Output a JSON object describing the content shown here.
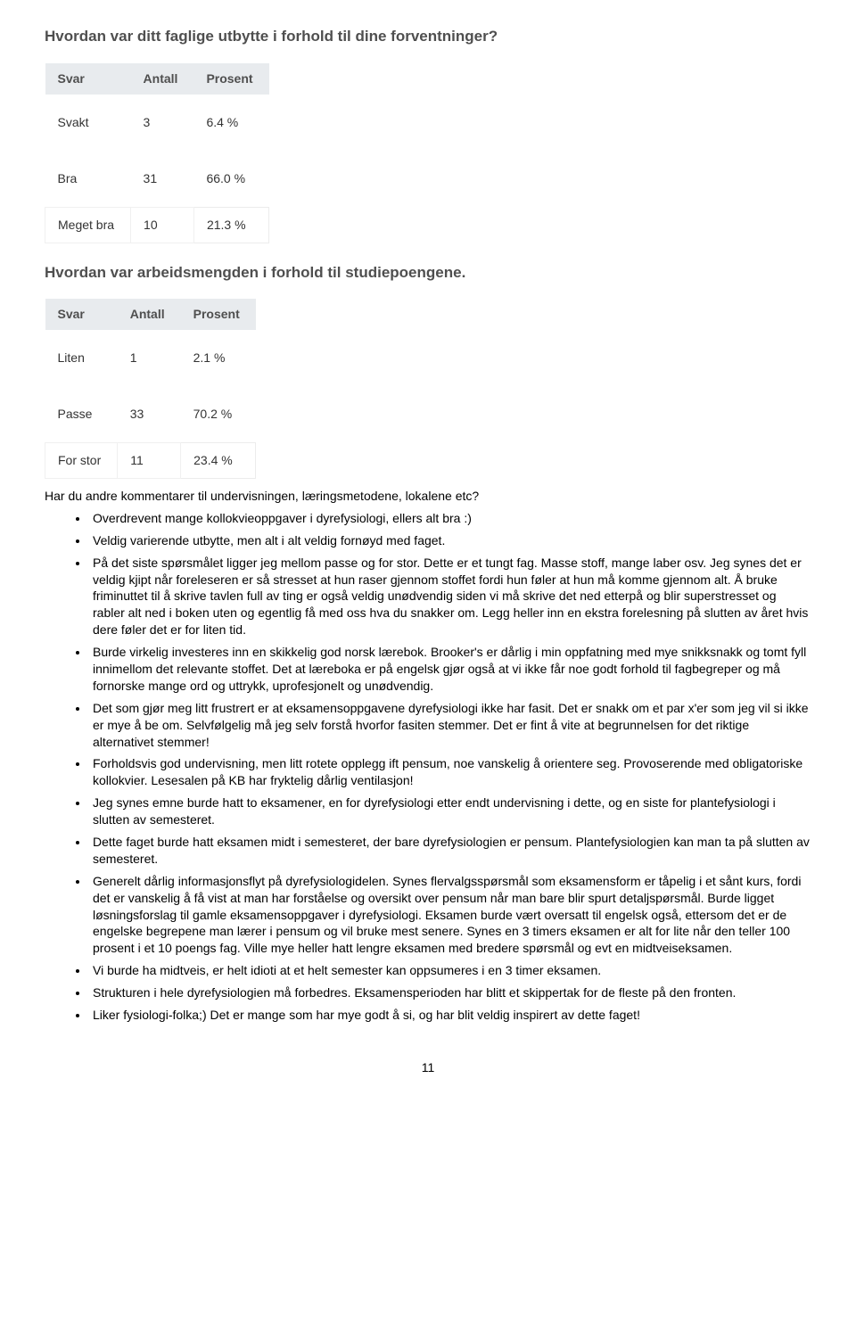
{
  "q1": {
    "title": "Hvordan var ditt faglige utbytte i forhold til dine forventninger?",
    "headers": [
      "Svar",
      "Antall",
      "Prosent"
    ],
    "rows": [
      {
        "label": "Svakt",
        "count": "3",
        "pct": "6.4 %"
      },
      {
        "label": "Bra",
        "count": "31",
        "pct": "66.0 %"
      },
      {
        "label": "Meget bra",
        "count": "10",
        "pct": "21.3 %"
      }
    ]
  },
  "q2": {
    "title": "Hvordan var arbeidsmengden i forhold til studiepoengene.",
    "headers": [
      "Svar",
      "Antall",
      "Prosent"
    ],
    "rows": [
      {
        "label": "Liten",
        "count": "1",
        "pct": "2.1 %"
      },
      {
        "label": "Passe",
        "count": "33",
        "pct": "70.2 %"
      },
      {
        "label": "For stor",
        "count": "11",
        "pct": "23.4 %"
      }
    ]
  },
  "comments_intro": "Har du andre kommentarer til undervisningen, læringsmetodene, lokalene etc?",
  "comments": [
    "Overdrevent mange kollokvieoppgaver i dyrefysiologi, ellers alt bra :)",
    "Veldig varierende utbytte, men alt i alt veldig fornøyd med faget.",
    "På det siste spørsmålet ligger jeg mellom passe og for stor. Dette er et tungt fag. Masse stoff, mange laber osv. Jeg synes det er veldig kjipt når foreleseren er så stresset at hun raser gjennom stoffet fordi hun føler at hun må komme gjennom alt. Å bruke friminuttet til å skrive tavlen full av ting er også veldig unødvendig siden vi må skrive det ned etterpå og blir superstresset og rabler alt ned i boken uten og egentlig få med oss hva du snakker om. Legg heller inn en ekstra forelesning på slutten av året hvis dere føler det er for liten tid.",
    "Burde virkelig investeres inn en skikkelig god norsk lærebok. Brooker's er dårlig i min oppfatning med mye snikksnakk og tomt fyll innimellom det relevante stoffet. Det at læreboka er på engelsk gjør også at vi ikke får noe godt forhold til fagbegreper og må fornorske mange ord og uttrykk, uprofesjonelt og unødvendig.",
    "Det som gjør meg litt frustrert er at eksamensoppgavene dyrefysiologi ikke har fasit. Det er snakk om et par x'er som jeg vil si ikke er mye å be om. Selvfølgelig må jeg selv forstå hvorfor fasiten stemmer. Det er fint å vite at begrunnelsen for det riktige alternativet stemmer!",
    "Forholdsvis god undervisning, men litt rotete opplegg ift pensum, noe vanskelig å orientere seg. Provoserende med obligatoriske kollokvier. Lesesalen på KB har fryktelig dårlig ventilasjon!",
    "Jeg synes emne burde hatt to eksamener, en for dyrefysiologi etter endt undervisning i dette, og en siste for plantefysiologi i slutten av semesteret.",
    "Dette faget burde hatt eksamen midt i semesteret, der bare dyrefysiologien er pensum. Plantefysiologien kan man ta på slutten av semesteret.",
    "Generelt dårlig informasjonsflyt på dyrefysiologidelen. Synes flervalgsspørsmål som eksamensform er tåpelig i et sånt kurs, fordi det er vanskelig å få vist at man har forståelse og oversikt over pensum når man bare blir spurt detaljspørsmål. Burde ligget løsningsforslag til gamle eksamensoppgaver i dyrefysiologi. Eksamen burde vært oversatt til engelsk også, ettersom det er de engelske begrepene man lærer i pensum og vil bruke mest senere. Synes en 3 timers eksamen er alt for lite når den teller 100 prosent i et 10 poengs fag. Ville mye heller hatt lengre eksamen med bredere spørsmål og evt en midtveiseksamen.",
    "Vi burde ha midtveis, er helt idioti at et helt semester kan oppsumeres i en 3 timer eksamen.",
    "Strukturen i hele dyrefysiologien må forbedres. Eksamensperioden har blitt et skippertak for de fleste på den fronten.",
    "Liker fysiologi-folka;) Det er mange som har mye godt å si, og har blit veldig inspirert av dette faget!"
  ],
  "page_number": "11"
}
